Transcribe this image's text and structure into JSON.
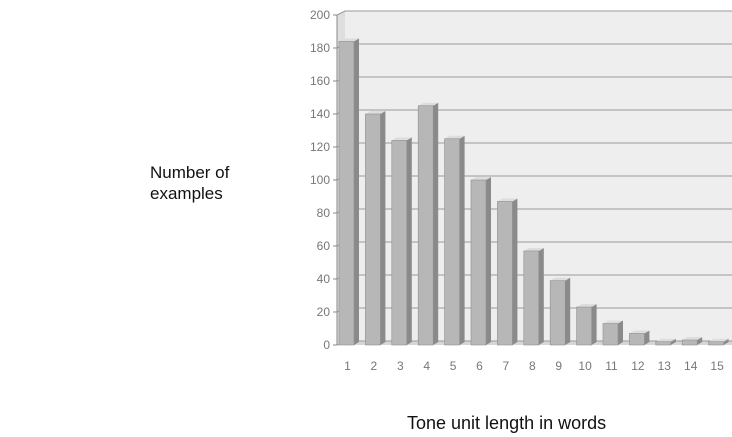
{
  "chart_data": {
    "type": "bar",
    "title": "",
    "xlabel": "Tone unit length in words",
    "ylabel": "Number of examples",
    "categories": [
      "1",
      "2",
      "3",
      "4",
      "5",
      "6",
      "7",
      "8",
      "9",
      "10",
      "11",
      "12",
      "13",
      "14",
      "15"
    ],
    "values": [
      184,
      140,
      124,
      145,
      125,
      100,
      87,
      57,
      39,
      23,
      13,
      7,
      2,
      3,
      2
    ],
    "ylim": [
      0,
      200
    ],
    "yticks": [
      0,
      20,
      40,
      60,
      80,
      100,
      120,
      140,
      160,
      180,
      200
    ],
    "grid": true,
    "style": "3d",
    "colors": {
      "bar_front": "#b7b7b7",
      "bar_side": "#8a8a8a",
      "bar_top": "#dddddd",
      "wall": "#eeeeee",
      "gridline": "#999999"
    }
  }
}
